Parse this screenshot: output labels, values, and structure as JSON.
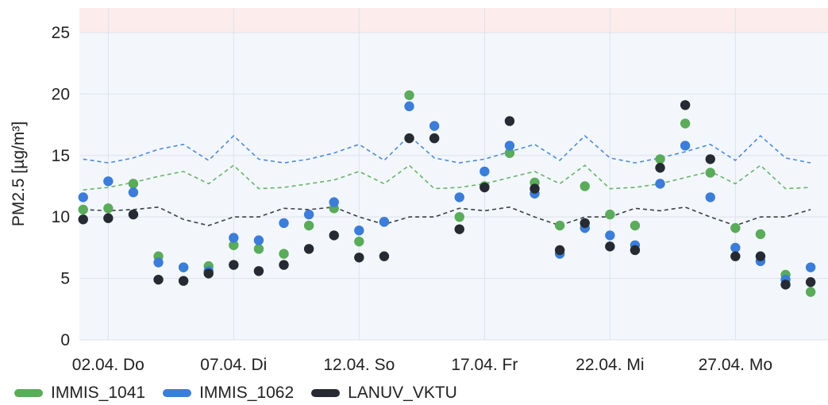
{
  "chart_data": {
    "type": "scatter",
    "ylabel": "PM2.5 [µg/m³]",
    "ylim": [
      0,
      27
    ],
    "yticks": [
      0,
      5,
      10,
      15,
      20,
      25
    ],
    "x_start": 1,
    "x_end": 31,
    "threshold": 25,
    "xticks": [
      {
        "x": 2,
        "label": "02.04. Do"
      },
      {
        "x": 7,
        "label": "07.04. Di"
      },
      {
        "x": 12,
        "label": "12.04. So"
      },
      {
        "x": 17,
        "label": "17.04. Fr"
      },
      {
        "x": 22,
        "label": "22.04. Mi"
      },
      {
        "x": 27,
        "label": "27.04. Mo"
      }
    ],
    "x_days": [
      1,
      2,
      3,
      4,
      5,
      6,
      7,
      8,
      9,
      10,
      11,
      12,
      13,
      14,
      15,
      16,
      17,
      18,
      19,
      20,
      21,
      22,
      23,
      24,
      25,
      26,
      27,
      28,
      29,
      30
    ],
    "series": [
      {
        "name": "IMMIS_1041",
        "color": "#5aab5a",
        "values": [
          10.6,
          10.7,
          12.7,
          6.8,
          5.9,
          6.0,
          7.7,
          7.4,
          7.0,
          9.3,
          10.7,
          8.0,
          9.6,
          19.9,
          16.4,
          10.0,
          12.5,
          15.2,
          12.8,
          9.3,
          12.5,
          10.2,
          9.3,
          14.7,
          17.6,
          13.6,
          9.1,
          8.6,
          5.3,
          3.9
        ]
      },
      {
        "name": "IMMIS_1062",
        "color": "#3b7dd8",
        "values": [
          11.6,
          12.9,
          12.0,
          6.3,
          5.9,
          5.6,
          8.3,
          8.1,
          9.5,
          10.2,
          11.2,
          8.9,
          9.6,
          19.0,
          17.4,
          11.6,
          13.7,
          15.8,
          11.9,
          7.0,
          9.1,
          8.5,
          7.7,
          12.7,
          15.8,
          11.6,
          7.5,
          6.4,
          4.9,
          5.9
        ]
      },
      {
        "name": "LANUV_VKTU",
        "color": "#262b33",
        "values": [
          9.8,
          9.9,
          10.2,
          4.9,
          4.8,
          5.4,
          6.1,
          5.6,
          6.1,
          7.4,
          8.5,
          6.7,
          6.8,
          16.4,
          16.4,
          9.0,
          12.4,
          17.8,
          12.3,
          7.3,
          9.5,
          7.6,
          7.3,
          14.0,
          19.1,
          14.7,
          6.8,
          6.8,
          4.5,
          4.7
        ]
      }
    ],
    "trend_lines": [
      {
        "series": "IMMIS_1041",
        "values": [
          12.2,
          12.4,
          12.8,
          13.3,
          13.7,
          12.7,
          14.2,
          12.3,
          12.4,
          12.7,
          13.0,
          13.7,
          12.7,
          14.2,
          12.3,
          12.4,
          12.7,
          13.2,
          13.7,
          12.7,
          14.2,
          12.3,
          12.4,
          12.7,
          13.2,
          13.7,
          12.7,
          14.2,
          12.3,
          12.4
        ]
      },
      {
        "series": "IMMIS_1062",
        "values": [
          14.7,
          14.4,
          14.8,
          15.5,
          15.9,
          14.6,
          16.6,
          14.7,
          14.4,
          14.7,
          15.2,
          15.9,
          14.6,
          16.6,
          14.8,
          14.4,
          14.7,
          15.3,
          15.9,
          14.6,
          16.6,
          14.8,
          14.4,
          14.8,
          15.3,
          15.9,
          14.6,
          16.6,
          14.8,
          14.4
        ]
      },
      {
        "series": "LANUV_VKTU",
        "values": [
          10.6,
          10.5,
          10.6,
          10.8,
          9.8,
          9.3,
          10.0,
          10.0,
          10.7,
          10.6,
          10.8,
          10.0,
          9.4,
          10.0,
          10.0,
          10.7,
          10.5,
          10.8,
          10.0,
          9.3,
          10.0,
          10.0,
          10.7,
          10.5,
          10.8,
          10.0,
          9.3,
          10.0,
          10.0,
          10.6
        ]
      }
    ]
  }
}
